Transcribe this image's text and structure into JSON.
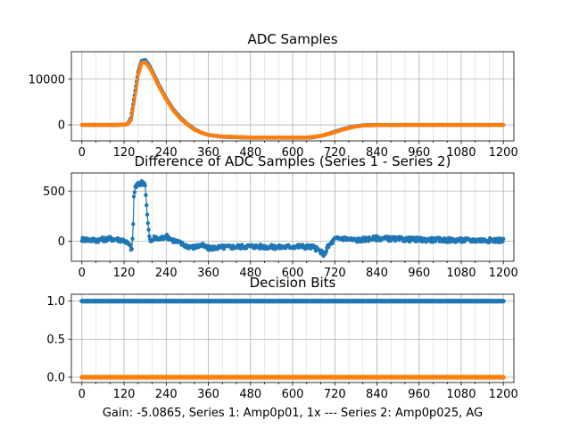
{
  "figure": {
    "xlabel": "Gain: -5.0865, Series 1: Amp0p01, 1x --- Series 2: Amp0p025, AG"
  },
  "colors": {
    "series1": "#1f77b4",
    "series2": "#ff7f0e"
  },
  "chart_data": [
    {
      "type": "line",
      "title": "ADC Samples",
      "xlim": [
        -30,
        1230
      ],
      "ylim": [
        -3500,
        16000
      ],
      "xticks": [
        0,
        120,
        240,
        360,
        480,
        600,
        720,
        840,
        960,
        1080,
        1200
      ],
      "xtick_labels": [
        "0",
        "120",
        "240",
        "360",
        "480",
        "600",
        "720",
        "840",
        "960",
        "1080",
        "1200"
      ],
      "yticks": [
        0,
        10000
      ],
      "ytick_labels": [
        "0",
        "10000"
      ],
      "grid": true,
      "series": [
        {
          "name": "Series 1",
          "color": "#1f77b4",
          "x": [
            0,
            100,
            120,
            130,
            140,
            150,
            160,
            170,
            180,
            190,
            200,
            210,
            220,
            240,
            260,
            280,
            300,
            320,
            340,
            360,
            400,
            480,
            560,
            640,
            660,
            680,
            700,
            720,
            740,
            760,
            780,
            800,
            840,
            960,
            1080,
            1200
          ],
          "y": [
            0,
            0,
            50,
            200,
            1500,
            6500,
            11500,
            14000,
            14200,
            13200,
            11800,
            10200,
            8600,
            5800,
            3400,
            1600,
            200,
            -900,
            -1700,
            -2200,
            -2600,
            -2800,
            -2800,
            -2800,
            -2700,
            -2400,
            -2000,
            -1500,
            -1000,
            -600,
            -300,
            -100,
            0,
            0,
            0,
            0
          ]
        },
        {
          "name": "Series 2",
          "color": "#ff7f0e",
          "x": [
            0,
            100,
            120,
            130,
            140,
            150,
            160,
            170,
            180,
            190,
            200,
            210,
            220,
            240,
            260,
            280,
            300,
            320,
            340,
            360,
            400,
            480,
            560,
            640,
            660,
            680,
            700,
            720,
            740,
            760,
            780,
            800,
            840,
            960,
            1080,
            1200
          ],
          "y": [
            0,
            0,
            40,
            150,
            1100,
            5900,
            10900,
            13500,
            13700,
            12800,
            11500,
            9900,
            8300,
            5600,
            3200,
            1400,
            100,
            -1000,
            -1700,
            -2200,
            -2550,
            -2750,
            -2750,
            -2750,
            -2650,
            -2400,
            -2050,
            -1600,
            -1100,
            -700,
            -350,
            -150,
            -50,
            0,
            0,
            0
          ]
        }
      ]
    },
    {
      "type": "line",
      "title": "Difference of ADC Samples (Series 1 - Series 2)",
      "xlim": [
        -30,
        1230
      ],
      "ylim": [
        -200,
        680
      ],
      "xticks": [
        0,
        120,
        240,
        360,
        480,
        600,
        720,
        840,
        960,
        1080,
        1200
      ],
      "xtick_labels": [
        "0",
        "120",
        "240",
        "360",
        "480",
        "600",
        "720",
        "840",
        "960",
        "1080",
        "1200"
      ],
      "yticks": [
        0,
        500
      ],
      "ytick_labels": [
        "0",
        "500"
      ],
      "grid": true,
      "series": [
        {
          "name": "Series 1 - Series 2",
          "color": "#1f77b4",
          "x": [
            0,
            40,
            80,
            120,
            135,
            142,
            145,
            148,
            152,
            158,
            165,
            172,
            180,
            185,
            190,
            195,
            205,
            220,
            240,
            260,
            280,
            300,
            320,
            340,
            360,
            400,
            480,
            560,
            620,
            660,
            690,
            700,
            720,
            740,
            780,
            840,
            900,
            960,
            1080,
            1200
          ],
          "y": [
            20,
            10,
            25,
            10,
            -40,
            -80,
            50,
            440,
            540,
            560,
            570,
            590,
            570,
            300,
            100,
            -10,
            30,
            20,
            50,
            10,
            -20,
            -50,
            -60,
            -40,
            -70,
            -60,
            -50,
            -60,
            -50,
            -60,
            -130,
            -60,
            20,
            30,
            10,
            30,
            20,
            15,
            10,
            10
          ]
        }
      ]
    },
    {
      "type": "scatter",
      "title": "Decision Bits",
      "xlim": [
        -30,
        1230
      ],
      "ylim": [
        -0.07,
        1.09
      ],
      "xticks": [
        0,
        120,
        240,
        360,
        480,
        600,
        720,
        840,
        960,
        1080,
        1200
      ],
      "xtick_labels": [
        "0",
        "120",
        "240",
        "360",
        "480",
        "600",
        "720",
        "840",
        "960",
        "1080",
        "1200"
      ],
      "yticks": [
        0.0,
        0.5,
        1.0
      ],
      "ytick_labels": [
        "0.0",
        "0.5",
        "1.0"
      ],
      "grid": true,
      "series": [
        {
          "name": "Series 1",
          "color": "#1f77b4",
          "x_range": [
            0,
            1200
          ],
          "y_constant": 1
        },
        {
          "name": "Series 2",
          "color": "#ff7f0e",
          "x_range": [
            0,
            1200
          ],
          "y_constant": 0
        }
      ]
    }
  ]
}
